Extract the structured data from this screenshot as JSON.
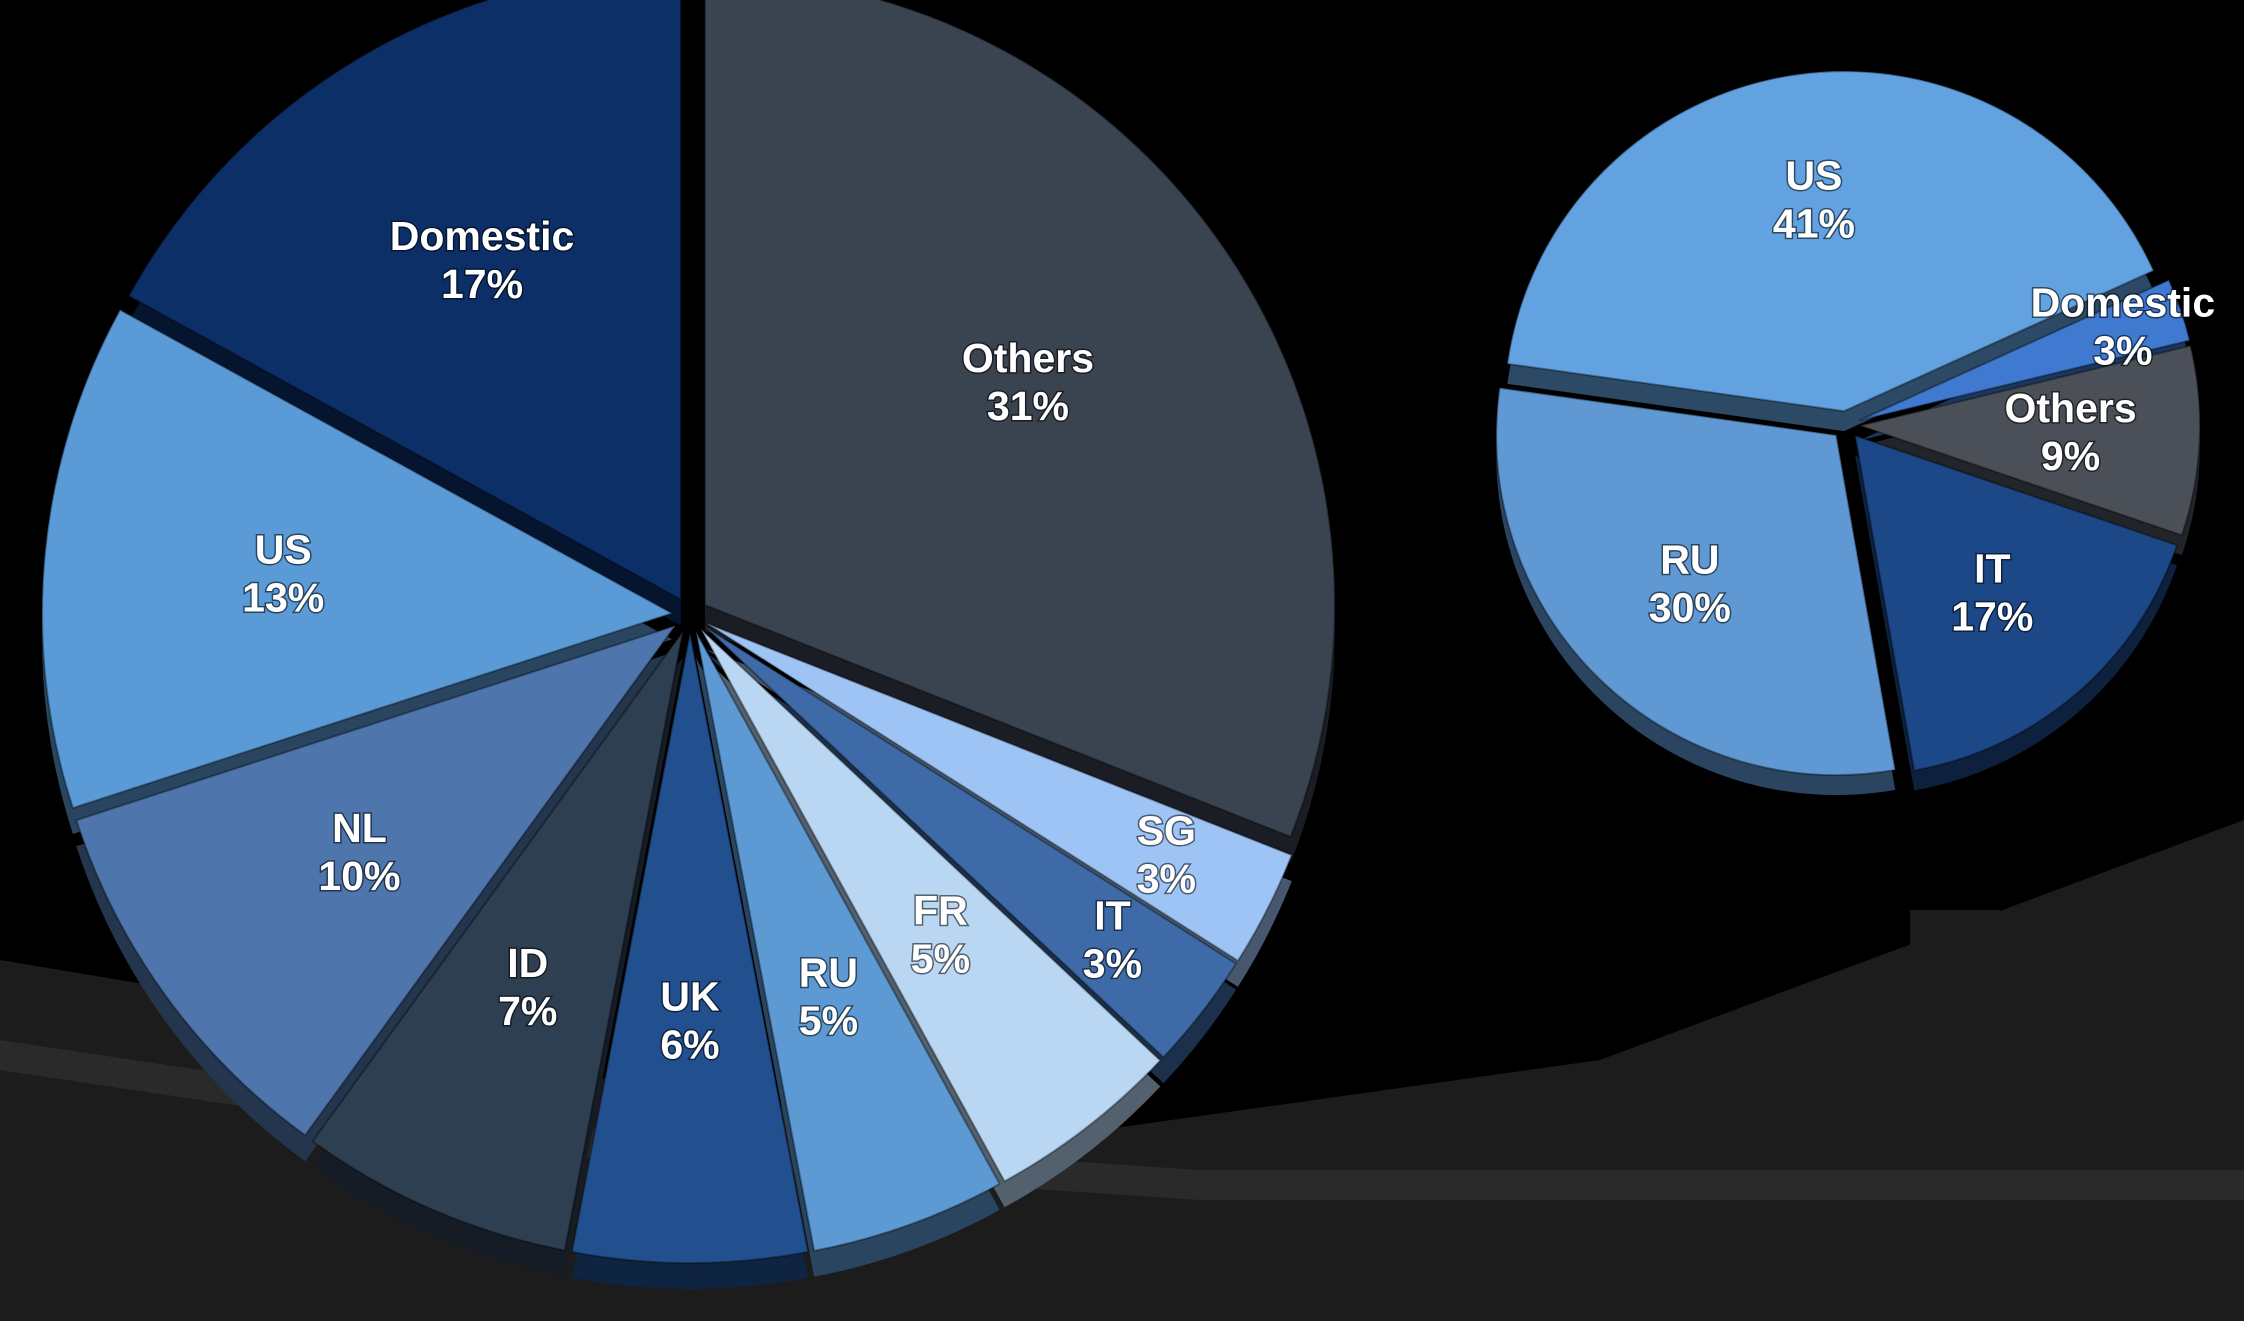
{
  "chart_data": [
    {
      "type": "pie",
      "labels": [
        "Others",
        "SG",
        "IT",
        "FR",
        "RU",
        "UK",
        "ID",
        "NL",
        "US",
        "Domestic"
      ],
      "values": [
        31,
        3,
        3,
        5,
        5,
        6,
        7,
        10,
        13,
        17
      ],
      "value_labels": [
        "31%",
        "3%",
        "3%",
        "5%",
        "5%",
        "6%",
        "7%",
        "10%",
        "13%",
        "17%"
      ],
      "colors": [
        "#3a4350",
        "#9ec3f5",
        "#3e6aa8",
        "#b9d6f2",
        "#5d9ad4",
        "#22508f",
        "#2f3f52",
        "#4f75ad",
        "#5a9ad6",
        "#0d2f68"
      ]
    },
    {
      "type": "pie",
      "labels": [
        "US",
        "Domestic",
        "Others",
        "IT",
        "RU"
      ],
      "values": [
        41,
        3,
        9,
        17,
        30
      ],
      "value_labels": [
        "41%",
        "3%",
        "9%",
        "17%",
        "30%"
      ],
      "colors": [
        "#62a2e0",
        "#3f7ad0",
        "#4a4f58",
        "#1d4888",
        "#5f98d2"
      ]
    }
  ]
}
